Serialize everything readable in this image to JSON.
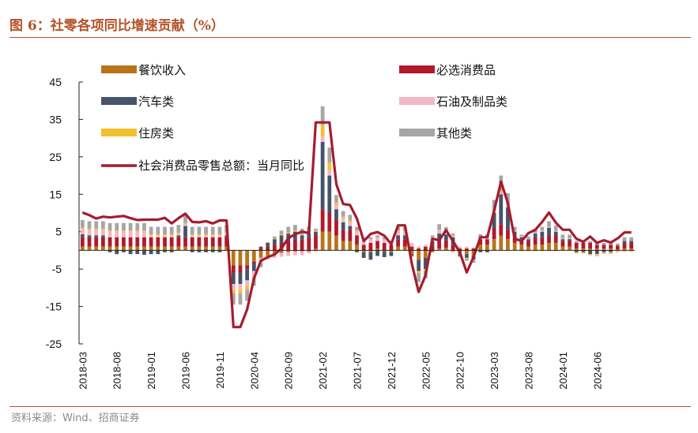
{
  "title": "图 6：社零各项同比增速贡献（%）",
  "source": "资料来源：Wind、招商证券",
  "colors": {
    "catering": "#b8741a",
    "essentials": "#b2182b",
    "autos": "#44546a",
    "oil": "#f4b6c2",
    "housing": "#f2c12e",
    "other": "#a6a6a6",
    "total": "#a51c30",
    "accent": "#b4532a"
  },
  "chart_data": {
    "type": "bar",
    "stacked": true,
    "title": "",
    "xlabel": "",
    "ylabel": "",
    "ylim": [
      -25,
      45
    ],
    "yticks": [
      45,
      35,
      25,
      15,
      5,
      -5,
      -15,
      -25
    ],
    "x_tick_labels": [
      "2018-03",
      "2018-08",
      "2019-01",
      "2019-06",
      "2019-11",
      "2020-04",
      "2020-09",
      "2021-02",
      "2021-07",
      "2021-12",
      "2022-05",
      "2022-10",
      "2023-03",
      "2023-08",
      "2024-01",
      "2024-06"
    ],
    "legend": [
      "餐饮收入",
      "必选消费品",
      "汽车类",
      "石油及制品类",
      "住房类",
      "其他类",
      "社会消费品零售总额：当月同比"
    ],
    "x": [
      "2018-03",
      "2018-04",
      "2018-05",
      "2018-06",
      "2018-07",
      "2018-08",
      "2018-09",
      "2018-10",
      "2018-11",
      "2018-12",
      "2019-01",
      "2019-02",
      "2019-03",
      "2019-04",
      "2019-05",
      "2019-06",
      "2019-07",
      "2019-08",
      "2019-09",
      "2019-10",
      "2019-11",
      "2019-12",
      "2020-01",
      "2020-02",
      "2020-03",
      "2020-04",
      "2020-05",
      "2020-06",
      "2020-07",
      "2020-08",
      "2020-09",
      "2020-10",
      "2020-11",
      "2020-12",
      "2021-01",
      "2021-02",
      "2021-03",
      "2021-04",
      "2021-05",
      "2021-06",
      "2021-07",
      "2021-08",
      "2021-09",
      "2021-10",
      "2021-11",
      "2021-12",
      "2022-01",
      "2022-02",
      "2022-03",
      "2022-04",
      "2022-05",
      "2022-06",
      "2022-07",
      "2022-08",
      "2022-09",
      "2022-10",
      "2022-11",
      "2022-12",
      "2023-01",
      "2023-02",
      "2023-03",
      "2023-04",
      "2023-05",
      "2023-06",
      "2023-07",
      "2023-08",
      "2023-09",
      "2023-10",
      "2023-11",
      "2023-12",
      "2024-01",
      "2024-02",
      "2024-03",
      "2024-04",
      "2024-05",
      "2024-06",
      "2024-07",
      "2024-08",
      "2024-09",
      "2024-10",
      "2024-11"
    ],
    "series": [
      {
        "name": "餐饮收入",
        "type": "bar",
        "values": [
          1.0,
          1.0,
          1.0,
          1.0,
          1.0,
          1.0,
          1.0,
          1.0,
          1.0,
          1.0,
          1.0,
          1.0,
          1.0,
          1.0,
          1.0,
          1.0,
          1.0,
          1.0,
          1.0,
          1.0,
          1.0,
          1.0,
          -4.0,
          -4.0,
          -4.0,
          -3.0,
          -2.0,
          -1.5,
          -1.0,
          -0.7,
          -0.5,
          -0.3,
          -0.3,
          -0.3,
          0.5,
          5.0,
          5.0,
          4.0,
          2.5,
          2.5,
          1.5,
          -0.5,
          -0.5,
          0.5,
          -0.3,
          -0.5,
          1.0,
          1.0,
          -1.0,
          -2.5,
          -2.0,
          -0.5,
          0.5,
          0.7,
          -0.2,
          -1.0,
          -1.0,
          -1.5,
          1.5,
          1.5,
          3.0,
          4.0,
          3.0,
          2.0,
          1.5,
          1.0,
          1.5,
          1.5,
          2.0,
          2.0,
          1.0,
          1.0,
          0.5,
          0.5,
          0.5,
          0.5,
          0.5,
          0.5,
          0.3,
          0.5,
          0.5
        ]
      },
      {
        "name": "必选消费品",
        "type": "bar",
        "values": [
          2.5,
          2.5,
          2.5,
          2.5,
          2.5,
          2.5,
          2.5,
          2.5,
          2.5,
          2.5,
          2.5,
          2.5,
          2.5,
          2.5,
          2.5,
          2.5,
          2.5,
          2.5,
          2.5,
          2.5,
          2.5,
          2.5,
          -2.0,
          -2.0,
          -1.0,
          -0.5,
          0.5,
          1.0,
          1.5,
          2.0,
          2.5,
          3.0,
          3.0,
          3.5,
          3.5,
          6.0,
          5.0,
          4.0,
          3.0,
          3.0,
          2.5,
          1.5,
          2.0,
          2.0,
          2.0,
          1.5,
          2.0,
          2.0,
          1.0,
          0.5,
          1.0,
          1.5,
          2.0,
          2.0,
          1.5,
          0.5,
          0.5,
          0.5,
          1.5,
          1.5,
          3.0,
          3.0,
          2.5,
          2.0,
          1.5,
          1.5,
          2.0,
          2.0,
          2.0,
          2.0,
          1.5,
          1.5,
          1.5,
          1.5,
          1.5,
          1.0,
          1.0,
          1.0,
          1.0,
          1.5,
          1.5
        ]
      },
      {
        "name": "汽车类",
        "type": "bar",
        "values": [
          0.8,
          0.5,
          0.5,
          0.5,
          -0.5,
          -1.0,
          -0.5,
          -1.0,
          -1.0,
          -1.2,
          -1.0,
          -1.0,
          -0.5,
          -0.5,
          0.5,
          3.0,
          -0.5,
          -0.5,
          -0.5,
          -0.5,
          -0.5,
          0.5,
          -3.0,
          -3.0,
          -3.0,
          -2.0,
          0.5,
          1.0,
          1.5,
          2.0,
          2.0,
          2.0,
          1.0,
          1.0,
          1.0,
          18.0,
          10.0,
          3.0,
          2.0,
          1.0,
          -0.5,
          -1.5,
          -2.0,
          -1.5,
          -1.5,
          -1.0,
          1.0,
          1.0,
          -0.5,
          -3.0,
          -3.0,
          1.0,
          2.0,
          1.5,
          2.0,
          -0.5,
          -1.0,
          -1.0,
          -0.5,
          -0.5,
          4.0,
          8.0,
          6.0,
          1.0,
          0.5,
          0.5,
          1.0,
          1.5,
          2.0,
          1.0,
          0.5,
          0.5,
          -0.5,
          -0.5,
          -1.0,
          -1.0,
          -0.5,
          -0.5,
          0.0,
          0.5,
          0.5
        ]
      },
      {
        "name": "石油及制品类",
        "type": "bar",
        "values": [
          1.5,
          1.5,
          1.5,
          1.5,
          1.5,
          1.5,
          1.5,
          1.5,
          1.5,
          1.5,
          0.5,
          0.5,
          0.5,
          0.5,
          0.5,
          0.5,
          0.5,
          0.5,
          0.5,
          0.5,
          0.5,
          0.5,
          -1.5,
          -1.5,
          -1.5,
          -1.5,
          -1.5,
          -1.0,
          -1.0,
          -1.0,
          -1.0,
          -1.0,
          -1.0,
          -0.5,
          -0.3,
          1.5,
          1.5,
          1.0,
          1.0,
          1.0,
          1.0,
          1.0,
          1.0,
          1.0,
          1.0,
          0.5,
          1.0,
          1.0,
          1.0,
          0.5,
          0.5,
          1.0,
          1.0,
          0.5,
          0.5,
          0.5,
          0.5,
          0.3,
          0.3,
          0.3,
          0.5,
          0.5,
          0.5,
          0.3,
          0.2,
          0.2,
          0.2,
          0.3,
          0.3,
          0.2,
          0.2,
          0.2,
          0.0,
          0.0,
          0.0,
          -0.3,
          -0.3,
          -0.3,
          -0.3,
          -0.2,
          -0.2
        ]
      },
      {
        "name": "住房类",
        "type": "bar",
        "values": [
          0.3,
          0.3,
          0.3,
          0.3,
          0.3,
          0.3,
          0.3,
          0.3,
          0.3,
          0.3,
          0.3,
          0.3,
          0.3,
          0.3,
          0.3,
          0.3,
          0.3,
          0.3,
          0.3,
          0.3,
          0.3,
          0.3,
          -1.0,
          -1.0,
          -1.0,
          -0.5,
          0.0,
          0.2,
          0.2,
          0.3,
          0.3,
          0.3,
          0.3,
          0.3,
          0.3,
          3.0,
          2.0,
          0.8,
          0.5,
          0.5,
          0.3,
          0.3,
          0.0,
          0.0,
          0.0,
          0.0,
          0.3,
          0.3,
          -0.3,
          -0.5,
          -0.5,
          0.0,
          0.0,
          0.0,
          -0.3,
          -0.3,
          -0.3,
          -0.3,
          0.0,
          0.0,
          0.5,
          0.5,
          0.3,
          0.0,
          -0.2,
          -0.2,
          -0.2,
          -0.2,
          -0.2,
          -0.2,
          0.0,
          0.0,
          -0.3,
          -0.3,
          -0.3,
          -0.3,
          -0.2,
          -0.2,
          -0.2,
          -0.2,
          -0.2
        ]
      },
      {
        "name": "其他类",
        "type": "bar",
        "values": [
          2.0,
          2.0,
          2.0,
          2.0,
          2.0,
          2.0,
          2.0,
          2.0,
          2.0,
          2.0,
          2.0,
          2.0,
          2.0,
          2.0,
          2.0,
          2.0,
          2.0,
          2.0,
          2.0,
          2.0,
          2.0,
          2.0,
          -3.0,
          -3.0,
          -3.0,
          -2.0,
          -1.0,
          0.0,
          0.5,
          1.0,
          1.5,
          1.5,
          1.5,
          1.5,
          0.5,
          5.0,
          4.0,
          2.0,
          1.5,
          1.5,
          1.0,
          0.5,
          0.5,
          0.5,
          0.5,
          0.5,
          1.0,
          1.0,
          0.0,
          -2.5,
          -2.0,
          0.5,
          1.5,
          1.5,
          0.5,
          0.0,
          -0.5,
          -0.5,
          1.0,
          1.0,
          2.5,
          4.0,
          3.0,
          1.0,
          0.5,
          0.5,
          1.0,
          1.0,
          1.5,
          1.5,
          1.0,
          1.0,
          0.5,
          0.5,
          0.5,
          0.5,
          0.5,
          0.5,
          0.5,
          1.0,
          1.0
        ]
      },
      {
        "name": "社会消费品零售总额：当月同比",
        "type": "line",
        "values": [
          10.1,
          9.4,
          8.5,
          9.0,
          8.8,
          9.0,
          9.2,
          8.6,
          8.1,
          8.2,
          8.2,
          8.2,
          8.7,
          7.2,
          8.6,
          9.8,
          7.6,
          7.5,
          7.8,
          7.2,
          8.0,
          8.0,
          -20.5,
          -20.5,
          -15.8,
          -7.5,
          -2.8,
          -1.8,
          -1.1,
          0.5,
          3.3,
          4.3,
          5.0,
          4.6,
          34.2,
          34.2,
          34.2,
          17.7,
          12.4,
          12.1,
          8.5,
          2.5,
          4.4,
          4.9,
          3.9,
          1.7,
          6.7,
          6.7,
          -3.5,
          -11.1,
          -6.7,
          3.1,
          2.7,
          5.4,
          2.5,
          -0.5,
          -5.9,
          -1.8,
          3.5,
          3.5,
          10.6,
          18.4,
          12.7,
          3.1,
          2.5,
          4.6,
          5.5,
          7.6,
          10.1,
          7.4,
          5.5,
          5.5,
          3.1,
          2.3,
          3.7,
          2.0,
          2.7,
          2.1,
          3.2,
          4.8,
          4.8
        ]
      }
    ]
  }
}
